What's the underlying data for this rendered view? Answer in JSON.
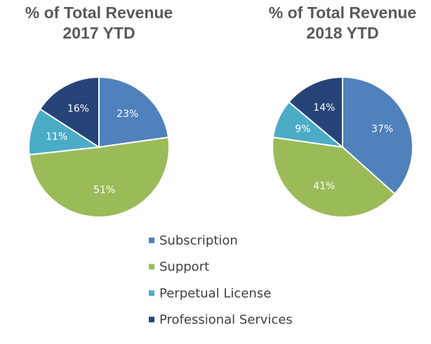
{
  "chart_data": [
    {
      "type": "pie",
      "title": [
        "% of Total Revenue",
        "2017 YTD"
      ],
      "values": [
        23,
        51,
        11,
        16
      ],
      "value_labels": [
        "23%",
        "51%",
        "11%",
        "16%"
      ]
    },
    {
      "type": "pie",
      "title": [
        "% of Total Revenue",
        "2018 YTD"
      ],
      "values": [
        37,
        41,
        9,
        14
      ],
      "value_labels": [
        "37%",
        "41%",
        "9%",
        "14%"
      ]
    }
  ],
  "legend": {
    "categories": [
      "Subscription",
      "Support",
      "Perpetual License",
      "Professional Services"
    ],
    "colors": [
      "#4f81bd",
      "#9bbb59",
      "#4bacc6",
      "#264478"
    ]
  }
}
